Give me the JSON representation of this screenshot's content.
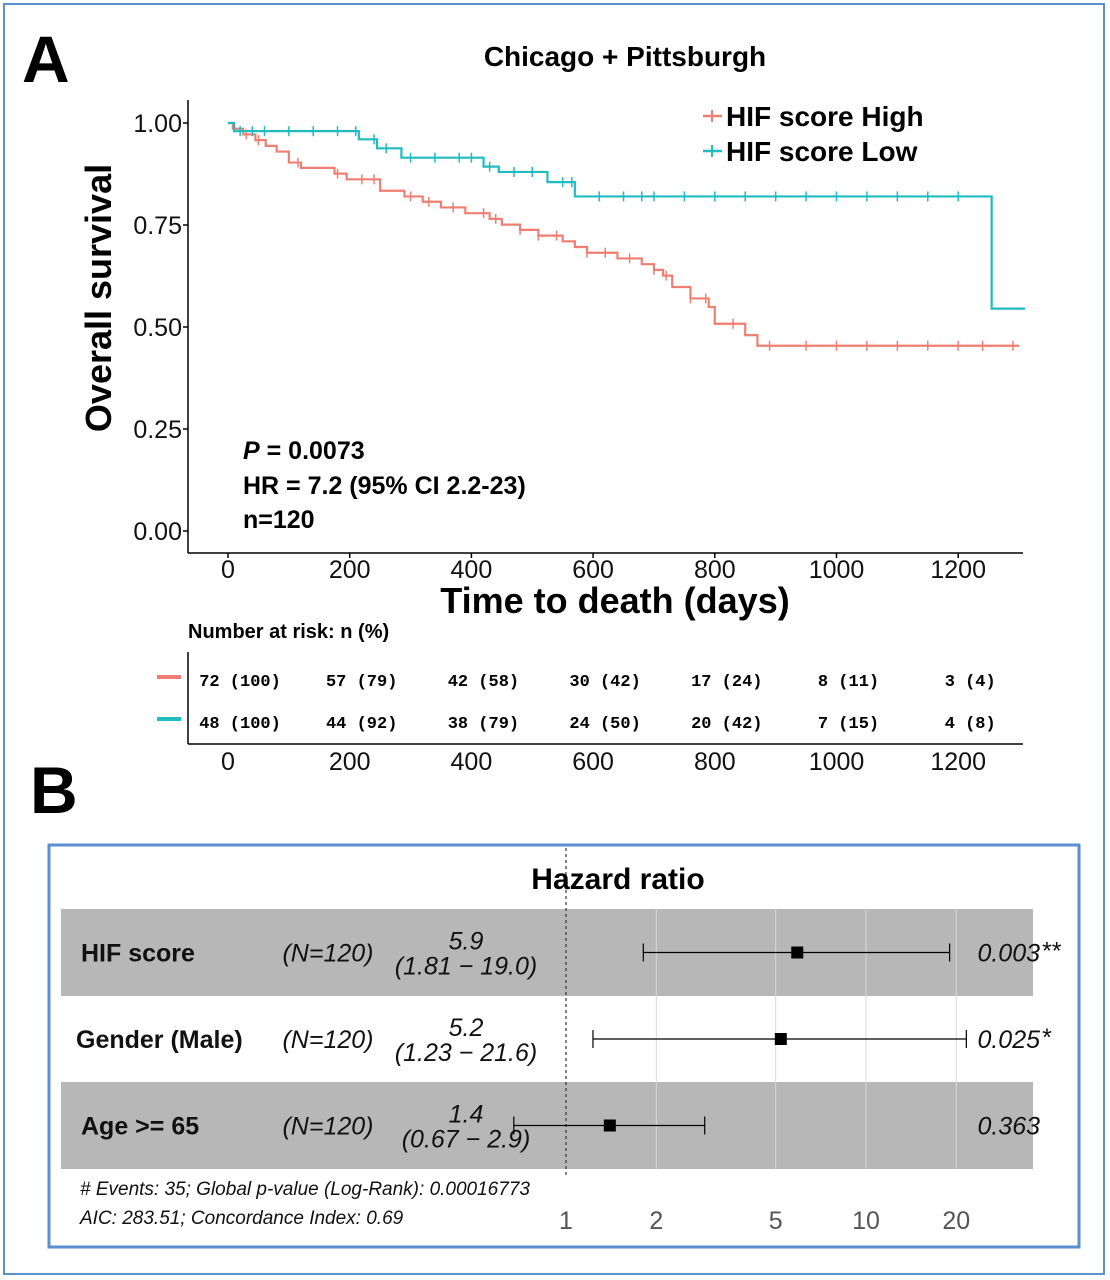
{
  "panel_labels": {
    "a": "A",
    "b": "B"
  },
  "colors": {
    "high": "#f07f73",
    "low": "#1fbcc1",
    "frame": "#5b8fd0",
    "band": "#b7b7b7"
  },
  "chart_data": [
    {
      "type": "line",
      "subtype": "kaplan-meier",
      "title": "Chicago + Pittsburgh",
      "xlabel": "Time to death (days)",
      "ylabel": "Overall survival",
      "xlim": [
        -80,
        1310
      ],
      "ylim": [
        -0.04,
        1.05
      ],
      "x_ticks": [
        "0",
        "200",
        "400",
        "600",
        "800",
        "1000",
        "1200"
      ],
      "y_ticks": [
        "0.00",
        "0.25",
        "0.50",
        "0.75",
        "1.00"
      ],
      "legend_position": "top-right",
      "series": [
        {
          "name": "HIF score High",
          "color_key": "high",
          "steps": [
            [
              0,
              1.0
            ],
            [
              8,
              0.986
            ],
            [
              25,
              0.972
            ],
            [
              45,
              0.958
            ],
            [
              62,
              0.944
            ],
            [
              80,
              0.93
            ],
            [
              100,
              0.903
            ],
            [
              120,
              0.89
            ],
            [
              175,
              0.876
            ],
            [
              195,
              0.862
            ],
            [
              250,
              0.834
            ],
            [
              290,
              0.82
            ],
            [
              320,
              0.807
            ],
            [
              350,
              0.793
            ],
            [
              390,
              0.779
            ],
            [
              430,
              0.765
            ],
            [
              450,
              0.751
            ],
            [
              480,
              0.738
            ],
            [
              510,
              0.724
            ],
            [
              550,
              0.71
            ],
            [
              570,
              0.696
            ],
            [
              590,
              0.682
            ],
            [
              640,
              0.668
            ],
            [
              680,
              0.654
            ],
            [
              700,
              0.64
            ],
            [
              715,
              0.626
            ],
            [
              730,
              0.598
            ],
            [
              760,
              0.57
            ],
            [
              790,
              0.549
            ],
            [
              800,
              0.508
            ],
            [
              850,
              0.48
            ],
            [
              870,
              0.454
            ],
            [
              1300,
              0.454
            ]
          ],
          "censor_x": [
            30,
            50,
            115,
            180,
            220,
            240,
            300,
            330,
            370,
            420,
            440,
            480,
            510,
            540,
            590,
            620,
            660,
            700,
            720,
            760,
            785,
            830,
            890,
            950,
            1000,
            1050,
            1100,
            1150,
            1200,
            1240,
            1290
          ]
        },
        {
          "name": "HIF score Low",
          "color_key": "low",
          "steps": [
            [
              0,
              1.0
            ],
            [
              10,
              0.98
            ],
            [
              215,
              0.96
            ],
            [
              245,
              0.938
            ],
            [
              285,
              0.915
            ],
            [
              420,
              0.893
            ],
            [
              445,
              0.88
            ],
            [
              525,
              0.855
            ],
            [
              570,
              0.82
            ],
            [
              1250,
              0.82
            ],
            [
              1255,
              0.545
            ],
            [
              1310,
              0.545
            ]
          ],
          "censor_x": [
            20,
            40,
            60,
            100,
            140,
            180,
            210,
            240,
            260,
            300,
            340,
            380,
            400,
            430,
            470,
            500,
            550,
            565,
            610,
            650,
            680,
            700,
            750,
            800,
            850,
            900,
            950,
            1000,
            1050,
            1100,
            1150,
            1200
          ]
        }
      ],
      "annotations": {
        "p_label": "P",
        "p_value": " = 0.0073",
        "hr": "HR = 7.2 (95%  CI 2.2-23)",
        "n": "n=120"
      }
    },
    {
      "type": "table",
      "title": "Number at risk: n (%)",
      "columns": [
        "0",
        "200",
        "400",
        "600",
        "800",
        "1000",
        "1200"
      ],
      "rows": [
        {
          "group": "HIF score High",
          "color_key": "high",
          "values": [
            "72 (100)",
            "57 (79)",
            "42 (58)",
            "30 (42)",
            "17 (24)",
            "8 (11)",
            "3 (4)"
          ]
        },
        {
          "group": "HIF score Low",
          "color_key": "low",
          "values": [
            "48 (100)",
            "44 (92)",
            "38 (79)",
            "24 (50)",
            "20 (42)",
            "7 (15)",
            "4 (8)"
          ]
        }
      ]
    },
    {
      "type": "scatter",
      "subtype": "forest-plot",
      "title": "Hazard ratio",
      "x_scale": "log",
      "x_ticks": [
        "1",
        "2",
        "5",
        "10",
        "20"
      ],
      "reference_line": 1,
      "rows": [
        {
          "variable": "HIF score",
          "n": "(N=120)",
          "hr_label": "5.9",
          "ci_label": "(1.81 − 19.0)",
          "p": "0.003",
          "stars": "**",
          "hr": 5.9,
          "lo": 1.81,
          "hi": 19.0,
          "shaded": true
        },
        {
          "variable": "Gender (Male)",
          "n": "(N=120)",
          "hr_label": "5.2",
          "ci_label": "(1.23 − 21.6)",
          "p": "0.025",
          "stars": "*",
          "hr": 5.2,
          "lo": 1.23,
          "hi": 21.6,
          "shaded": false
        },
        {
          "variable": "Age >= 65",
          "n": "(N=120)",
          "hr_label": "1.4",
          "ci_label": "(0.67 −  2.9)",
          "p": "0.363",
          "stars": "",
          "hr": 1.4,
          "lo": 0.67,
          "hi": 2.9,
          "shaded": true
        }
      ],
      "footnote": [
        "# Events: 35; Global p-value (Log-Rank): 0.00016773",
        "AIC: 283.51; Concordance Index: 0.69"
      ]
    }
  ]
}
